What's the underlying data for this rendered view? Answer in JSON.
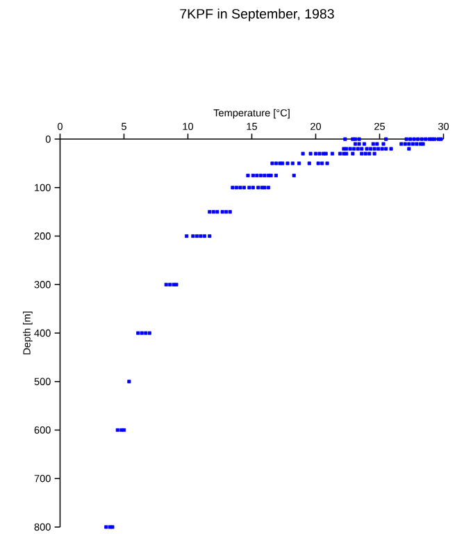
{
  "chart_data": {
    "type": "scatter",
    "title": "7KPF in September, 1983",
    "xlabel": "Temperature [°C]",
    "ylabel": "Depth [m]",
    "xlim": [
      0,
      30
    ],
    "xticks": [
      0,
      5,
      10,
      15,
      20,
      25,
      30
    ],
    "ylim": [
      800,
      0
    ],
    "yticks": [
      0,
      100,
      200,
      300,
      400,
      500,
      600,
      700,
      800
    ],
    "marker": "square",
    "grid": false,
    "series": [
      {
        "color": "#0000ff",
        "x": [
          22.3,
          22.9,
          23.1,
          23.4,
          25.5,
          27.1,
          27.4,
          27.7,
          28.0,
          28.3,
          28.6,
          28.9,
          29.1,
          29.3,
          29.6,
          29.8,
          23.1,
          23.4,
          23.8,
          24.5,
          24.8,
          25.3,
          26.7,
          27.0,
          27.3,
          27.6,
          27.9,
          28.2,
          28.4,
          22.2,
          22.4,
          22.7,
          23.0,
          23.3,
          23.6,
          24.0,
          24.3,
          24.6,
          24.9,
          25.2,
          25.5,
          25.9,
          27.3,
          19.0,
          19.6,
          20.0,
          20.3,
          20.6,
          20.8,
          21.3,
          21.9,
          22.2,
          22.4,
          22.9,
          23.6,
          23.9,
          24.2,
          24.6,
          16.6,
          16.9,
          17.2,
          17.4,
          17.8,
          18.2,
          18.7,
          19.5,
          20.2,
          20.5,
          20.9,
          14.7,
          15.1,
          15.4,
          15.7,
          16.0,
          16.3,
          16.5,
          16.9,
          18.3,
          13.5,
          13.8,
          14.1,
          14.4,
          14.8,
          15.1,
          15.5,
          15.8,
          16.0,
          16.3,
          11.7,
          12.0,
          12.3,
          12.7,
          13.0,
          13.3,
          9.9,
          10.4,
          10.7,
          11.0,
          11.3,
          11.7,
          8.3,
          8.6,
          8.9,
          9.1,
          6.1,
          6.4,
          6.7,
          7.0,
          5.4,
          4.5,
          4.8,
          5.0,
          3.6,
          3.9,
          4.1
        ],
        "values": [
          0,
          0,
          0,
          0,
          0,
          0,
          0,
          0,
          0,
          0,
          0,
          0,
          0,
          0,
          0,
          0,
          10,
          10,
          10,
          10,
          10,
          10,
          10,
          10,
          10,
          10,
          10,
          10,
          10,
          20,
          20,
          20,
          20,
          20,
          20,
          20,
          20,
          20,
          20,
          20,
          20,
          20,
          20,
          30,
          30,
          30,
          30,
          30,
          30,
          30,
          30,
          30,
          30,
          30,
          30,
          30,
          30,
          30,
          50,
          50,
          50,
          50,
          50,
          50,
          50,
          50,
          50,
          50,
          50,
          75,
          75,
          75,
          75,
          75,
          75,
          75,
          75,
          75,
          100,
          100,
          100,
          100,
          100,
          100,
          100,
          100,
          100,
          100,
          150,
          150,
          150,
          150,
          150,
          150,
          200,
          200,
          200,
          200,
          200,
          200,
          300,
          300,
          300,
          300,
          400,
          400,
          400,
          400,
          500,
          600,
          600,
          600,
          800,
          800,
          800
        ]
      }
    ]
  }
}
